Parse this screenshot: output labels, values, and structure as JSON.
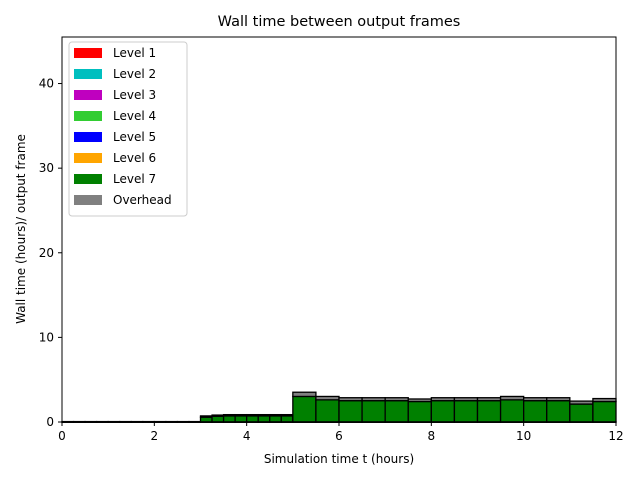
{
  "chart_data": {
    "type": "bar",
    "title": "Wall time between output frames",
    "xlabel": "Simulation time t (hours)",
    "ylabel": "Wall time (hours)/ output frame",
    "xlim": [
      0,
      12
    ],
    "ylim": [
      0,
      45.5
    ],
    "x_ticks": [
      "0",
      "2",
      "4",
      "6",
      "8",
      "10",
      "12"
    ],
    "y_ticks": [
      "0",
      "10",
      "20",
      "30",
      "40"
    ],
    "grid": false,
    "legend_placement": "top-left",
    "stacked": true,
    "bar_edges": [
      0,
      0.25,
      0.5,
      0.75,
      1.0,
      1.25,
      1.5,
      1.75,
      2.0,
      2.25,
      2.5,
      2.75,
      3.0,
      3.25,
      3.5,
      3.75,
      4.0,
      4.25,
      4.5,
      4.75,
      5.0,
      5.5,
      6.0,
      6.5,
      7.0,
      7.5,
      8.0,
      8.5,
      9.0,
      9.5,
      10.0,
      10.5,
      11.0,
      11.5,
      12.0
    ],
    "series": [
      {
        "name": "Level 1",
        "color": "#ff0000",
        "values": [
          0.02,
          0.02,
          0.02,
          0.02,
          0.02,
          0.02,
          0.02,
          0.02,
          0.02,
          0.02,
          0.02,
          0.02,
          0.02,
          0.02,
          0.02,
          0.02,
          0.02,
          0.02,
          0.02,
          0.02,
          0.02,
          0.02,
          0.02,
          0.02,
          0.02,
          0.02,
          0.02,
          0.02,
          0.02,
          0.02,
          0.02,
          0.02,
          0.02,
          0.02
        ]
      },
      {
        "name": "Level 2",
        "color": "#00bfbf",
        "values": [
          0,
          0,
          0,
          0,
          0,
          0,
          0,
          0,
          0,
          0,
          0,
          0,
          0,
          0,
          0,
          0,
          0,
          0,
          0,
          0,
          0,
          0,
          0,
          0,
          0,
          0,
          0,
          0,
          0,
          0,
          0,
          0,
          0,
          0
        ]
      },
      {
        "name": "Level 3",
        "color": "#bf00bf",
        "values": [
          0,
          0,
          0,
          0,
          0,
          0,
          0,
          0,
          0,
          0,
          0,
          0,
          0,
          0,
          0,
          0,
          0,
          0,
          0,
          0,
          0,
          0,
          0,
          0,
          0,
          0,
          0,
          0,
          0,
          0,
          0,
          0,
          0,
          0
        ]
      },
      {
        "name": "Level 4",
        "color": "#32cd32",
        "values": [
          0,
          0,
          0,
          0,
          0,
          0,
          0,
          0,
          0,
          0,
          0,
          0,
          0,
          0,
          0,
          0,
          0,
          0,
          0,
          0,
          0,
          0,
          0,
          0,
          0,
          0,
          0,
          0,
          0,
          0,
          0,
          0,
          0,
          0
        ]
      },
      {
        "name": "Level 5",
        "color": "#0000ff",
        "values": [
          0,
          0,
          0,
          0,
          0,
          0,
          0,
          0,
          0,
          0,
          0,
          0,
          0,
          0,
          0,
          0,
          0,
          0,
          0,
          0,
          0,
          0,
          0,
          0,
          0,
          0,
          0,
          0,
          0,
          0,
          0,
          0,
          0,
          0
        ]
      },
      {
        "name": "Level 6",
        "color": "#ffa500",
        "values": [
          0,
          0,
          0,
          0,
          0,
          0,
          0,
          0,
          0,
          0,
          0,
          0,
          0,
          0,
          0,
          0,
          0,
          0,
          0,
          0,
          0,
          0,
          0,
          0,
          0,
          0,
          0,
          0,
          0,
          0,
          0,
          0,
          0,
          0
        ]
      },
      {
        "name": "Level 7",
        "color": "#008000",
        "values": [
          0,
          0,
          0,
          0,
          0,
          0,
          0,
          0,
          0,
          0,
          0,
          0,
          0.55,
          0.65,
          0.7,
          0.7,
          0.7,
          0.7,
          0.7,
          0.7,
          3.0,
          2.6,
          2.5,
          2.5,
          2.5,
          2.4,
          2.5,
          2.5,
          2.5,
          2.6,
          2.5,
          2.5,
          2.1,
          2.4
        ]
      },
      {
        "name": "Overhead",
        "color": "#808080",
        "values": [
          0.03,
          0.03,
          0.03,
          0.03,
          0.03,
          0.03,
          0.03,
          0.03,
          0.03,
          0.03,
          0.03,
          0.03,
          0.15,
          0.15,
          0.15,
          0.15,
          0.15,
          0.15,
          0.15,
          0.15,
          0.5,
          0.4,
          0.35,
          0.35,
          0.35,
          0.3,
          0.35,
          0.35,
          0.35,
          0.4,
          0.35,
          0.35,
          0.35,
          0.35
        ]
      }
    ]
  }
}
